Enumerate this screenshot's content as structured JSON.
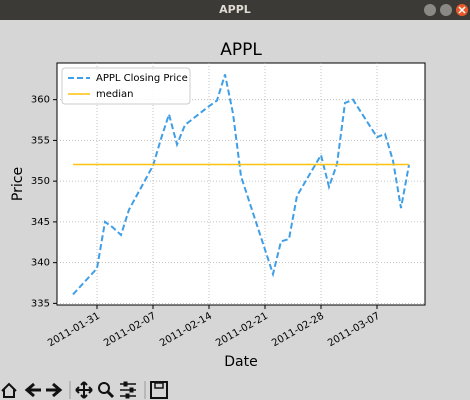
{
  "window": {
    "title": "APPL"
  },
  "chart_data": {
    "type": "line",
    "title": "APPL",
    "xlabel": "Date",
    "ylabel": "Price",
    "x": [
      "2011-01-28",
      "2011-01-31",
      "2011-02-01",
      "2011-02-02",
      "2011-02-03",
      "2011-02-04",
      "2011-02-07",
      "2011-02-08",
      "2011-02-09",
      "2011-02-10",
      "2011-02-11",
      "2011-02-14",
      "2011-02-15",
      "2011-02-16",
      "2011-02-17",
      "2011-02-18",
      "2011-02-22",
      "2011-02-23",
      "2011-02-24",
      "2011-02-25",
      "2011-02-28",
      "2011-03-01",
      "2011-03-02",
      "2011-03-03",
      "2011-03-04",
      "2011-03-07",
      "2011-03-08",
      "2011-03-09",
      "2011-03-10",
      "2011-03-11"
    ],
    "series": [
      {
        "name": "APPL Closing Price",
        "color": "#3f9fe6",
        "dashed": true,
        "values": [
          336.1,
          339.3,
          345.0,
          344.3,
          343.4,
          346.5,
          351.9,
          355.2,
          358.2,
          354.5,
          356.9,
          359.2,
          359.9,
          363.1,
          358.3,
          350.6,
          338.6,
          342.6,
          342.9,
          348.2,
          353.2,
          349.3,
          352.1,
          359.6,
          360.0,
          355.4,
          355.8,
          352.5,
          346.7,
          352.0
        ]
      },
      {
        "name": "median",
        "color": "#ffc20e",
        "dashed": false,
        "values": [
          352.05,
          352.05,
          352.05,
          352.05,
          352.05,
          352.05,
          352.05,
          352.05,
          352.05,
          352.05,
          352.05,
          352.05,
          352.05,
          352.05,
          352.05,
          352.05,
          352.05,
          352.05,
          352.05,
          352.05,
          352.05,
          352.05,
          352.05,
          352.05,
          352.05,
          352.05,
          352.05,
          352.05,
          352.05,
          352.05
        ]
      }
    ],
    "xlim": [
      "2011-01-26",
      "2011-03-13"
    ],
    "xticks": [
      "2011-01-31",
      "2011-02-07",
      "2011-02-14",
      "2011-02-21",
      "2011-02-28",
      "2011-03-07"
    ],
    "ylim": [
      334.8,
      364.5
    ],
    "yticks": [
      335,
      340,
      345,
      350,
      355,
      360
    ],
    "grid": true,
    "legend": "upper-left"
  }
}
